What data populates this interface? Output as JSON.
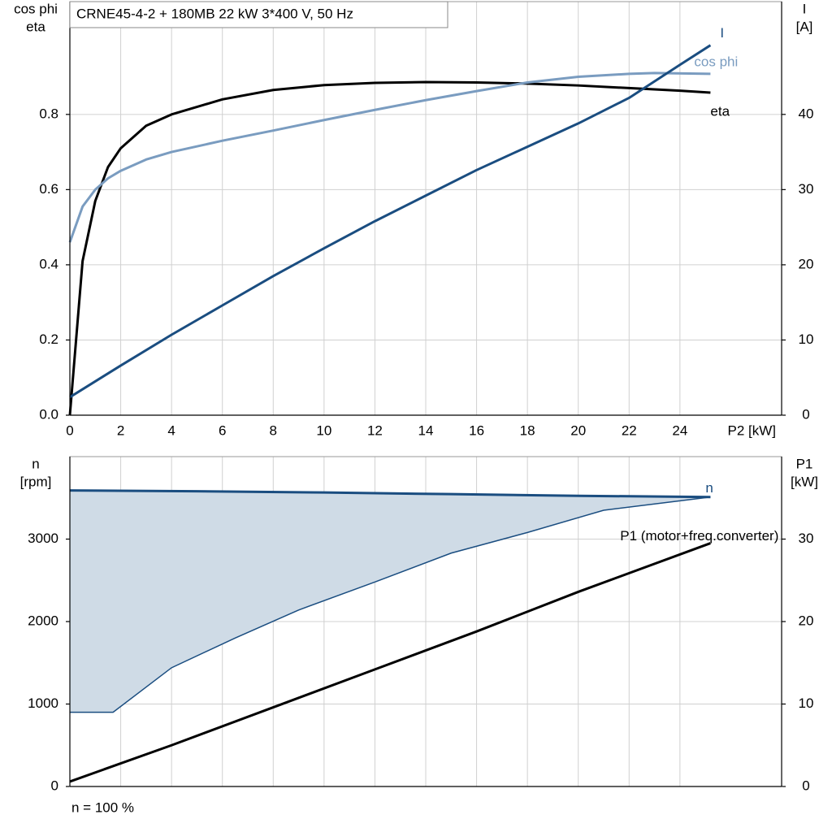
{
  "chart_data": [
    {
      "type": "line",
      "title": "CRNE45-4-2 + 180MB   22 kW   3*400 V, 50 Hz",
      "ylabel": [
        "cos phi",
        "eta"
      ],
      "y2label": [
        "I",
        "[A]"
      ],
      "xlabel": "P2 [kW]",
      "xlim": [
        0,
        28
      ],
      "xticks": [
        0,
        2,
        4,
        6,
        8,
        10,
        12,
        14,
        16,
        18,
        20,
        22,
        24
      ],
      "ylim": [
        0,
        1.1
      ],
      "yticks": [
        {
          "value": 0,
          "label": "0.0"
        },
        0.2,
        0.4,
        0.6,
        0.8
      ],
      "y2lim": [
        0,
        55
      ],
      "y2ticks": [
        0,
        10,
        20,
        30,
        40
      ],
      "grid": true,
      "series": [
        {
          "name": "eta",
          "color": "#000000",
          "x": [
            0,
            0.5,
            1,
            1.5,
            2,
            3,
            4,
            6,
            8,
            10,
            12,
            14,
            16,
            18,
            20,
            22,
            24,
            25.2
          ],
          "values": [
            0,
            0.41,
            0.57,
            0.66,
            0.71,
            0.77,
            0.8,
            0.84,
            0.865,
            0.878,
            0.884,
            0.886,
            0.885,
            0.882,
            0.877,
            0.87,
            0.863,
            0.858
          ]
        },
        {
          "name": "cos phi",
          "color": "#7a9cc0",
          "x": [
            0,
            0.5,
            1,
            1.5,
            2,
            3,
            4,
            6,
            8,
            10,
            12,
            14,
            16,
            18,
            20,
            22,
            23,
            25.2
          ],
          "values": [
            0.46,
            0.555,
            0.6,
            0.63,
            0.65,
            0.68,
            0.7,
            0.73,
            0.757,
            0.785,
            0.812,
            0.838,
            0.862,
            0.885,
            0.9,
            0.908,
            0.91,
            0.908
          ]
        },
        {
          "name": "I",
          "color": "#1a4d80",
          "axis": "y2",
          "x": [
            0,
            2,
            4,
            6,
            8,
            10,
            12,
            14,
            16,
            18,
            20,
            22,
            24,
            25.2
          ],
          "values": [
            2.4,
            6.6,
            10.7,
            14.6,
            18.5,
            22.2,
            25.8,
            29.2,
            32.6,
            35.7,
            38.8,
            42.2,
            46.6,
            49.2
          ]
        }
      ]
    },
    {
      "type": "line",
      "ylabel": [
        "n",
        "[rpm]"
      ],
      "y2label": [
        "P1",
        "[kW]"
      ],
      "note": "n = 100 %",
      "xlim": [
        0,
        28
      ],
      "ylim": [
        0,
        4000
      ],
      "yticks": [
        0,
        1000,
        2000,
        3000
      ],
      "y2lim": [
        0,
        40
      ],
      "y2ticks": [
        0,
        10,
        20,
        30
      ],
      "grid": true,
      "series": [
        {
          "name": "n",
          "color": "#1a4d80",
          "fill": "#cfdbe6",
          "x": [
            0,
            5,
            10,
            15,
            20,
            25.2
          ],
          "values": [
            3590,
            3580,
            3565,
            3545,
            3525,
            3510
          ],
          "range_lower": {
            "x": [
              0,
              1.7,
              4,
              6.5,
              9,
              12,
              15,
              18,
              21,
              25.2
            ],
            "values": [
              900,
              900,
              1440,
              1800,
              2140,
              2480,
              2830,
              3080,
              3350,
              3510
            ]
          }
        },
        {
          "name": "P1 (motor+freq.converter)",
          "color": "#000000",
          "axis": "y2",
          "x": [
            0,
            4,
            8,
            12,
            16,
            20,
            25.2
          ],
          "values": [
            0.6,
            5,
            9.6,
            14.2,
            18.8,
            23.6,
            29.5
          ]
        }
      ]
    }
  ]
}
